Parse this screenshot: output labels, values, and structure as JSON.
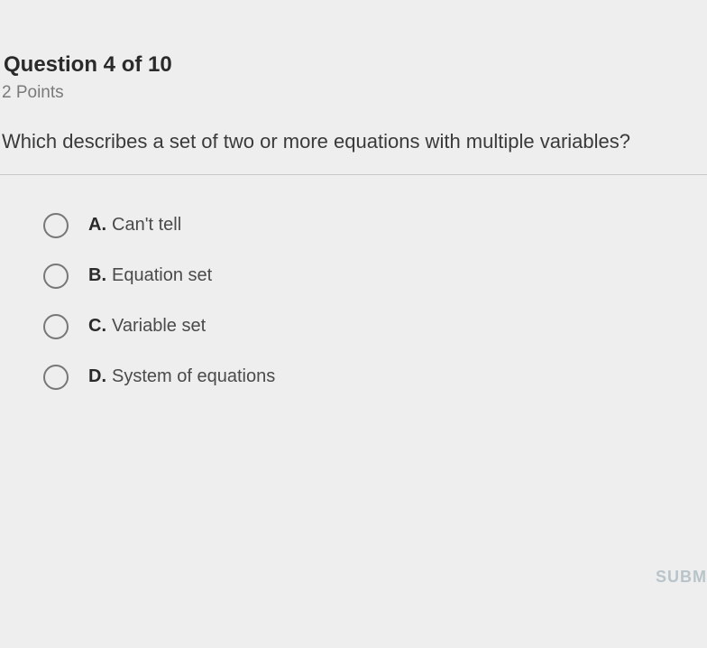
{
  "header": {
    "question_number_label": "Question 4 of 10",
    "points_label": "2 Points"
  },
  "question": {
    "text": "Which describes a set of two or more equations with multiple variables?"
  },
  "options": [
    {
      "letter": "A.",
      "text": "Can't tell"
    },
    {
      "letter": "B.",
      "text": "Equation set"
    },
    {
      "letter": "C.",
      "text": "Variable set"
    },
    {
      "letter": "D.",
      "text": "System of equations"
    }
  ],
  "submit": {
    "label": "SUBM"
  },
  "style": {
    "background_color": "#eeeeee",
    "text_color": "#3a3a3a",
    "muted_color": "#7a7a7a",
    "radio_border_color": "#777777",
    "divider_color": "#c8c8c8",
    "submit_color": "#b8c4ca",
    "header_fontsize": 24,
    "question_fontsize": 22,
    "option_fontsize": 20,
    "radio_size": 28
  }
}
